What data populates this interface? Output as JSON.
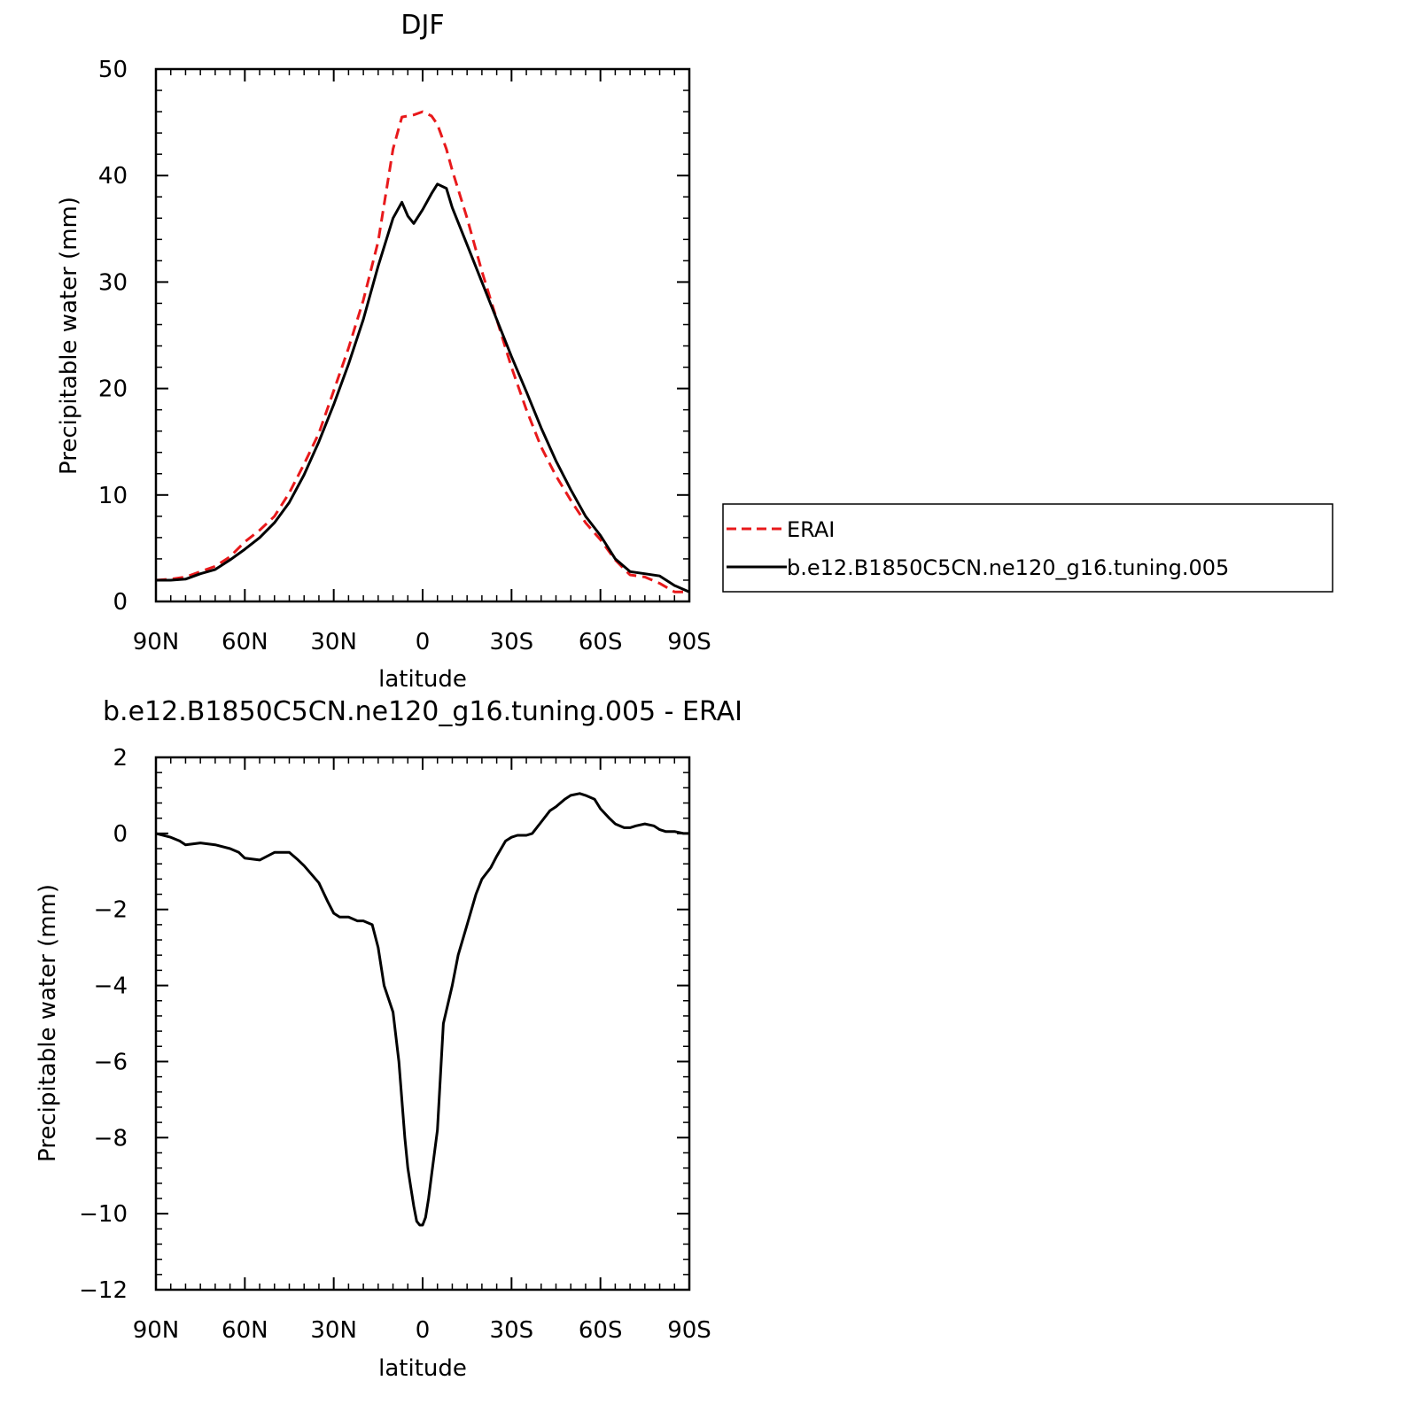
{
  "chart_data": [
    {
      "type": "line",
      "title": "DJF",
      "xlabel": "latitude",
      "ylabel": "Precipitable water (mm)",
      "xlim": [
        90,
        -90
      ],
      "ylim": [
        0,
        50
      ],
      "x_ticks": [
        90,
        60,
        30,
        0,
        -30,
        -60,
        -90
      ],
      "x_tick_labels": [
        "90N",
        "60N",
        "30N",
        "0",
        "30S",
        "60S",
        "90S"
      ],
      "y_ticks": [
        0,
        10,
        20,
        30,
        40,
        50
      ],
      "y_tick_labels": [
        "0",
        "10",
        "20",
        "30",
        "40",
        "50"
      ],
      "legend_position": "right",
      "series": [
        {
          "name": "ERAI",
          "color": "#e8191b",
          "dash": "dashed",
          "x": [
            90,
            85,
            80,
            75,
            70,
            65,
            60,
            55,
            50,
            45,
            40,
            35,
            30,
            25,
            20,
            15,
            10,
            7,
            5,
            3,
            0,
            -3,
            -5,
            -8,
            -10,
            -15,
            -20,
            -25,
            -30,
            -35,
            -40,
            -45,
            -50,
            -55,
            -60,
            -65,
            -70,
            -75,
            -80,
            -85,
            -90
          ],
          "y": [
            2.0,
            2.1,
            2.3,
            2.8,
            3.3,
            4.2,
            5.6,
            6.7,
            8.0,
            10.2,
            12.9,
            15.8,
            19.8,
            23.8,
            28.3,
            33.8,
            42.5,
            45.5,
            45.6,
            45.7,
            46.0,
            45.6,
            44.8,
            42.5,
            40.5,
            36.0,
            31.0,
            26.5,
            22.0,
            18.0,
            14.5,
            11.8,
            9.5,
            7.4,
            5.8,
            3.9,
            2.5,
            2.3,
            1.7,
            0.9,
            0.9
          ]
        },
        {
          "name": "b.e12.B1850C5CN.ne120_g16.tuning.005",
          "color": "#000000",
          "dash": "solid",
          "x": [
            90,
            85,
            80,
            75,
            70,
            65,
            60,
            55,
            50,
            45,
            40,
            35,
            30,
            25,
            20,
            15,
            10,
            7,
            5,
            3,
            0,
            -3,
            -5,
            -8,
            -10,
            -15,
            -20,
            -25,
            -30,
            -35,
            -40,
            -45,
            -50,
            -55,
            -60,
            -65,
            -70,
            -75,
            -80,
            -85,
            -90
          ],
          "y": [
            2.0,
            2.0,
            2.1,
            2.6,
            3.0,
            3.9,
            4.9,
            6.0,
            7.4,
            9.3,
            11.9,
            15.0,
            18.5,
            22.3,
            26.5,
            31.5,
            36.0,
            37.5,
            36.2,
            35.5,
            36.8,
            38.3,
            39.2,
            38.8,
            37.0,
            33.5,
            30.0,
            26.5,
            23.0,
            19.7,
            16.3,
            13.2,
            10.5,
            8.0,
            6.2,
            4.0,
            2.8,
            2.6,
            2.4,
            1.5,
            0.9
          ]
        }
      ]
    },
    {
      "type": "line",
      "title": "b.e12.B1850C5CN.ne120_g16.tuning.005 - ERAI",
      "xlabel": "latitude",
      "ylabel": "Precipitable water (mm)",
      "xlim": [
        90,
        -90
      ],
      "ylim": [
        -12,
        2
      ],
      "x_ticks": [
        90,
        60,
        30,
        0,
        -30,
        -60,
        -90
      ],
      "x_tick_labels": [
        "90N",
        "60N",
        "30N",
        "0",
        "30S",
        "60S",
        "90S"
      ],
      "y_ticks": [
        -12,
        -10,
        -8,
        -6,
        -4,
        -2,
        0,
        2
      ],
      "y_tick_labels": [
        "−12",
        "−10",
        "−8",
        "−6",
        "−4",
        "−2",
        "0",
        "2"
      ],
      "series": [
        {
          "color": "#000000",
          "dash": "solid",
          "x": [
            90,
            85,
            82,
            80,
            75,
            70,
            65,
            62,
            60,
            55,
            50,
            45,
            42,
            40,
            35,
            32,
            30,
            28,
            25,
            22,
            20,
            17,
            15,
            13,
            10,
            8,
            6,
            5,
            4,
            3,
            2,
            1,
            0,
            -1,
            -2,
            -3,
            -5,
            -7,
            -10,
            -12,
            -15,
            -18,
            -20,
            -23,
            -25,
            -28,
            -30,
            -32,
            -35,
            -37,
            -40,
            -43,
            -45,
            -48,
            -50,
            -53,
            -55,
            -58,
            -60,
            -63,
            -65,
            -68,
            -70,
            -72,
            -75,
            -78,
            -80,
            -82,
            -85,
            -88,
            -90
          ],
          "y": [
            0.0,
            -0.1,
            -0.2,
            -0.3,
            -0.25,
            -0.3,
            -0.4,
            -0.5,
            -0.65,
            -0.7,
            -0.5,
            -0.5,
            -0.7,
            -0.85,
            -1.3,
            -1.8,
            -2.1,
            -2.2,
            -2.2,
            -2.3,
            -2.3,
            -2.4,
            -3.0,
            -4.0,
            -4.7,
            -6.0,
            -8.0,
            -8.8,
            -9.3,
            -9.8,
            -10.2,
            -10.3,
            -10.3,
            -10.1,
            -9.6,
            -9.0,
            -7.8,
            -5.0,
            -4.0,
            -3.2,
            -2.4,
            -1.6,
            -1.2,
            -0.9,
            -0.6,
            -0.2,
            -0.1,
            -0.05,
            -0.05,
            0.0,
            0.3,
            0.6,
            0.7,
            0.9,
            1.0,
            1.05,
            1.0,
            0.9,
            0.65,
            0.4,
            0.25,
            0.15,
            0.15,
            0.2,
            0.25,
            0.2,
            0.1,
            0.05,
            0.05,
            0.0,
            0.0
          ]
        }
      ]
    }
  ]
}
